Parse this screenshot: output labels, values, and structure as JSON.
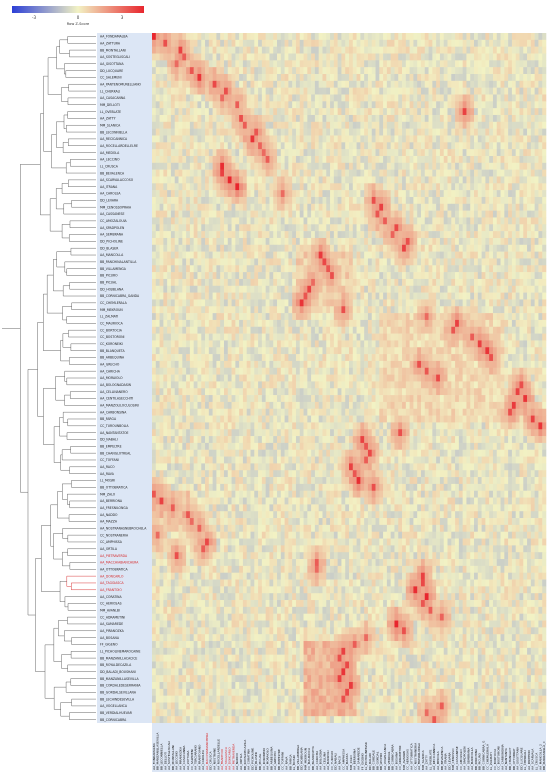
{
  "chart_data": {
    "type": "heatmap",
    "title": "",
    "xlabel": "",
    "ylabel": "",
    "legend": {
      "title": "Row Z-Score",
      "placement": "top-left",
      "ticks": [
        "-3",
        "0",
        "3"
      ],
      "range": [
        -3,
        3
      ],
      "colors": {
        "low": "#2c3fd6",
        "mid": "#f2f2c4",
        "high": "#e8262e"
      }
    },
    "grid": false,
    "highlight_color": "#d62728",
    "sidebar_color": "#dce6f5",
    "rows": [
      "AA_FONDAMALBA",
      "AA_ZATTURA",
      "BB_MONTALLANI",
      "AA_SOSTEGLISCALI",
      "AA_GISOTTANA",
      "DD_LUCQUARE",
      "CC_SALEMENI",
      "AA_PANTENOMUNELLIANO",
      "LL_CHERKALI",
      "AA_CASACANNA",
      "MM_DELLOTI",
      "LL_OVEBLATE",
      "AA_ZATTY",
      "MM_SLANICA",
      "BB_LECONNIELLA",
      "AA_RECICANNICA",
      "AA_ROCELLARDELLELRE",
      "AA_MEDOLA",
      "AA_LECCINO",
      "LL_CRUSCA",
      "BB_BEVALENCA",
      "AA_SCARVALACCOSO",
      "AA_ITRANA",
      "AA_CAROLEA",
      "DD_LEVARA",
      "MM_CENOSSOPRAIA",
      "AA_CASSANESE",
      "CC_AMOZALOUIA",
      "AA_SPADPOLEN",
      "AA_SEMBRANA",
      "DD_PICHOLINE",
      "DD_BLASER",
      "AA_MANCOLLA",
      "BB_PANCHINALANTILLA",
      "BB_VILLAMENGA",
      "BB_PICURO",
      "BB_PICUAL",
      "DD_HOJIBLANA",
      "BB_CORNICABRA_GANDA",
      "CC_CHEMLERALA",
      "MM_MEKROUN",
      "LL_ZALMATI",
      "CC_MAURIOCA",
      "CC_BORTOCIA",
      "CC_BOSTORONI",
      "CC_KORONEIKI",
      "BB_BLANQUETA",
      "BB_ARBEQUINA",
      "AA_GRECHO",
      "AA_CARICHA",
      "AA_MORAIOLO",
      "AA_BOLOGNADASIN",
      "AA_CELLINANERO",
      "AA_CENTILASECCHITI",
      "AA_MANZOLILOCULOSINI",
      "AA_CARBONSINA",
      "BB_FARGA",
      "CC_TUROUNBOLIA",
      "AA_NANTANTATOE",
      "DD_NABALI",
      "BB_EMPELTRE",
      "BB_CHANGLOTREAL",
      "CC_TOFFANI",
      "AA_RACO",
      "AA_RAVA",
      "LL_MOSRI",
      "BB_OTTOBRATICA",
      "MM_ZALO",
      "AA_BERRIONA",
      "AA_FRESNILONGA",
      "AA_NADDO",
      "AA_MAZZA",
      "AA_NOSTRANASNEBROCHELA",
      "CC_NOSTRANERIA",
      "CC_AMPHISSA",
      "AA_ORTILA",
      "AA_PIETRAVERDA",
      "AA_MACCHIABIANCHERA",
      "AA_OTTOBRATICA",
      "AA_DONCARLO",
      "AA_TAGGIASCA",
      "AA_FRANTOIO",
      "AA_CORATINA",
      "CC_AERIOSAS",
      "MM_AVANLBI",
      "CC_ADRAMETINI",
      "AA_SAMAREDE",
      "AA_PIRANOZKA",
      "AA_BOSANA",
      "FF_GIGENO",
      "LL_PICHOLINEMAROCAINE",
      "BB_MANZANILLACACICE",
      "BB_ROYALDECAZILA",
      "DD_BALADI_BOUSHANI",
      "BB_MANZANILLASEVILLA",
      "BB_CORDALEDESERRANIA",
      "BB_GORDALSEVILLANA",
      "BB_LECHINDESEVILLA",
      "AA_VOGELLANCA",
      "BB_VERDIALHUEVAR",
      "BB_CORNICABRA"
    ],
    "highlighted_rows": [
      "AA_PIETRAVERDA",
      "AA_MACCHIABIANCHERA",
      "AA_DONCARLO",
      "AA_TAGGIASCA",
      "AA_FRANTOIO"
    ],
    "columns": [
      "AA_FONDAMALBA",
      "BB_MANZANILLASEVILLA",
      "BB_LECONNIELLA",
      "AA_DELLOTI",
      "AA_SOSTEGLISCALI",
      "BB_MONTALLANI",
      "AA_LECCINO",
      "AA_PIRANOZKA",
      "AA_CASACANNA",
      "AA_ZATTURA",
      "CC_SALEMENI",
      "AA_TERCIARANO",
      "AA_FRANTOIANO",
      "AA_CAROLEA",
      "AA_MACCHIABIANCHERA",
      "DD_CRUSCA",
      "AA_NOSTRANE",
      "AA_ROCELLARDELLE",
      "AA_FRANTOIO",
      "AA_TAGGIASCA",
      "AA_DONCARLO",
      "AA_PIETRAVERDA",
      "AA_NADDO",
      "AA_ORTILA",
      "BB_ROYALDECAZILA",
      "AA_CORATINA",
      "DD_PICHOLINE",
      "DD_BLASER",
      "BB_PICUAL",
      "CC_KORONEIKI",
      "AA_MORAIOLO",
      "BB_ARBEQUINA",
      "AA_GRECHO",
      "BB_EMPELTRE",
      "CC_TOFFANI",
      "AA_RAVA",
      "BB_FARGA",
      "LL_MOSRI",
      "BB_VILLAMENGA",
      "DD_HOJIBLANA",
      "MM_MEKROUN",
      "CC_MAURIOCA",
      "BB_BLANQUETA",
      "AA_CARICHA",
      "AA_BOLOGNA",
      "AA_CELLINA",
      "AA_MANZOLI",
      "CC_TUROUN",
      "DD_NABALI",
      "AA_RACO",
      "CC_AMPHISSA",
      "AA_MAZZA",
      "MM_ZALO",
      "AA_BERRIONA",
      "AA_SAMAREDE",
      "FF_GIGENO",
      "LL_PICHOLINEMAR",
      "DD_BALADI",
      "BB_CORDALE",
      "BB_GORDAL",
      "BB_LECHIN",
      "AA_VOGELLANCA",
      "BB_VERDIAL",
      "BB_CORNICABRA",
      "AA_BOSANA",
      "CC_ADRAMETINI",
      "MM_AVANLBI",
      "CC_AERIOSAS",
      "AA_OTTOBRATICA",
      "CC_NOSTRANERIA",
      "AA_FRESNILONGA",
      "MM_SLANICA",
      "AA_ZATTY",
      "LL_OVEBLATE",
      "AA_RECICANNICA",
      "AA_MEDOLA",
      "BB_BEVALENCA",
      "AA_ITRANA",
      "DD_LEVARA",
      "MM_CENOSSO",
      "AA_CASSANESE",
      "CC_AMOZALO",
      "AA_SPADPOLEN",
      "AA_SEMBRANA",
      "AA_MANCOLLA",
      "BB_PANCHINA",
      "BB_PICURO",
      "BB_CORNICABRA_G",
      "CC_CHEMLERALA",
      "LL_ZALMATI",
      "CC_BORTOCIA",
      "CC_BOSTORONI",
      "AA_CARBONSINA",
      "AA_NANTANTA",
      "BB_CHANGLOT",
      "BB_OTTOBRAT",
      "AA_GISOTTANA",
      "DD_LUCQUARE",
      "LL_CHERKALI",
      "AA_PANTENO",
      "AA_SCARVALA",
      "LL_CRUSCA",
      "AA_MANCOLLA_2",
      "BB_MANZANILLA_C"
    ],
    "highlighted_columns": [
      "AA_MACCHIABIANCHERA",
      "AA_FRANTOIO",
      "AA_TAGGIASCA",
      "AA_DONCARLO",
      "AA_PIETRAVERDA"
    ],
    "strong_cells": [
      [
        0,
        0,
        3
      ],
      [
        1,
        3,
        2.4
      ],
      [
        2,
        7,
        2.6
      ],
      [
        3,
        8,
        2.2
      ],
      [
        4,
        6,
        2.0
      ],
      [
        5,
        10,
        2.3
      ],
      [
        6,
        12,
        2.8
      ],
      [
        7,
        16,
        2.5
      ],
      [
        8,
        19,
        2.4
      ],
      [
        9,
        18,
        2.0
      ],
      [
        10,
        22,
        2.2
      ],
      [
        11,
        82,
        2.6
      ],
      [
        12,
        23,
        2.4
      ],
      [
        13,
        24,
        2.2
      ],
      [
        14,
        27,
        2.3
      ],
      [
        15,
        26,
        2.8
      ],
      [
        16,
        28,
        2.1
      ],
      [
        17,
        29,
        2.0
      ],
      [
        18,
        30,
        2.2
      ],
      [
        19,
        18,
        2.9
      ],
      [
        20,
        18,
        2.6
      ],
      [
        21,
        20,
        3.0
      ],
      [
        22,
        22,
        3.0
      ],
      [
        23,
        34,
        2.0
      ],
      [
        24,
        58,
        2.4
      ],
      [
        25,
        60,
        2.6
      ],
      [
        26,
        59,
        2.3
      ],
      [
        27,
        61,
        2.2
      ],
      [
        28,
        64,
        2.5
      ],
      [
        29,
        63,
        2.1
      ],
      [
        30,
        67,
        2.4
      ],
      [
        31,
        66,
        2.6
      ],
      [
        32,
        44,
        2.7
      ],
      [
        33,
        45,
        2.5
      ],
      [
        34,
        46,
        2.3
      ],
      [
        35,
        47,
        2.4
      ],
      [
        36,
        42,
        2.0
      ],
      [
        37,
        41,
        2.6
      ],
      [
        38,
        40,
        2.3
      ],
      [
        39,
        39,
        2.8
      ],
      [
        40,
        50,
        2.4
      ],
      [
        41,
        72,
        2.0
      ],
      [
        42,
        80,
        2.6
      ],
      [
        43,
        79,
        2.3
      ],
      [
        44,
        84,
        2.2
      ],
      [
        45,
        86,
        2.6
      ],
      [
        46,
        88,
        2.8
      ],
      [
        47,
        89,
        2.4
      ],
      [
        48,
        70,
        2.4
      ],
      [
        49,
        72,
        2.3
      ],
      [
        50,
        75,
        2.5
      ],
      [
        51,
        97,
        2.4
      ],
      [
        52,
        96,
        2.6
      ],
      [
        53,
        98,
        2.8
      ],
      [
        54,
        95,
        2.7
      ],
      [
        55,
        94,
        2.4
      ],
      [
        56,
        100,
        2.6
      ],
      [
        57,
        102,
        2.8
      ],
      [
        58,
        65,
        2.4
      ],
      [
        59,
        55,
        2.6
      ],
      [
        60,
        56,
        2.3
      ],
      [
        61,
        57,
        2.5
      ],
      [
        62,
        56,
        2.2
      ],
      [
        63,
        52,
        2.6
      ],
      [
        64,
        53,
        2.3
      ],
      [
        65,
        54,
        2.9
      ],
      [
        66,
        58,
        2.4
      ],
      [
        67,
        0,
        2.3
      ],
      [
        68,
        2,
        2.6
      ],
      [
        69,
        5,
        2.2
      ],
      [
        70,
        9,
        2.3
      ],
      [
        71,
        10,
        2.0
      ],
      [
        72,
        12,
        2.1
      ],
      [
        73,
        1,
        2.0
      ],
      [
        74,
        14,
        2.5
      ],
      [
        75,
        13,
        2.2
      ],
      [
        76,
        6,
        2.4
      ],
      [
        77,
        43,
        2.2
      ],
      [
        78,
        43,
        2.0
      ],
      [
        79,
        71,
        2.6
      ],
      [
        80,
        71,
        2.5
      ],
      [
        81,
        69,
        2.9
      ],
      [
        82,
        72,
        3.0
      ],
      [
        83,
        71,
        2.3
      ],
      [
        84,
        73,
        2.2
      ],
      [
        85,
        76,
        2.1
      ],
      [
        86,
        64,
        3.0
      ],
      [
        87,
        66,
        2.4
      ],
      [
        88,
        56,
        2.0
      ],
      [
        89,
        53,
        2.2
      ],
      [
        90,
        50,
        2.6
      ],
      [
        91,
        49,
        2.4
      ],
      [
        92,
        51,
        2.5
      ],
      [
        93,
        50,
        2.8
      ],
      [
        94,
        49,
        2.6
      ],
      [
        95,
        52,
        2.7
      ],
      [
        96,
        51,
        2.5
      ],
      [
        97,
        50,
        2.4
      ],
      [
        98,
        76,
        2.2
      ],
      [
        99,
        72,
        2.0
      ],
      [
        100,
        74,
        2.3
      ],
      [
        101,
        78,
        2.6
      ],
      [
        102,
        80,
        2.8
      ]
    ]
  }
}
